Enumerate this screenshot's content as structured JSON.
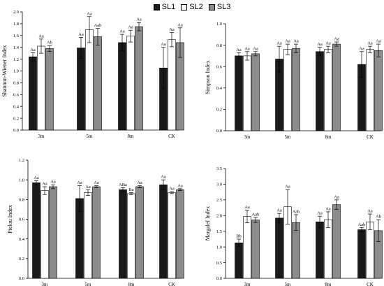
{
  "legend": [
    {
      "name": "SL1",
      "color": "#1a1a1a"
    },
    {
      "name": "SL2",
      "color": "#ffffff"
    },
    {
      "name": "SL3",
      "color": "#8c8c8c"
    }
  ],
  "chart_data": [
    {
      "type": "bar",
      "ylabel": "Shannon-Wiener Index",
      "ylim": [
        0,
        2.0
      ],
      "yticks": [
        "0.0",
        "0.2",
        "0.4",
        "0.6",
        "0.8",
        "1.0",
        "1.2",
        "1.4",
        "1.6",
        "1.8",
        "2.0"
      ],
      "categories": [
        "3m",
        "5m",
        "8m",
        "CK"
      ],
      "series": [
        {
          "name": "SL1",
          "values": [
            1.24,
            1.39,
            1.48,
            1.05
          ],
          "errors": [
            0.07,
            0.18,
            0.14,
            0.35
          ],
          "labels": [
            "Aa",
            "Aa",
            "Aa",
            "Aa"
          ]
        },
        {
          "name": "SL2",
          "values": [
            1.42,
            1.7,
            1.59,
            1.53
          ],
          "errors": [
            0.12,
            0.22,
            0.1,
            0.12
          ],
          "labels": [
            "Aa",
            "Aa",
            "Aa",
            "Aa"
          ]
        },
        {
          "name": "SL3",
          "values": [
            1.38,
            1.58,
            1.75,
            1.48
          ],
          "errors": [
            0.05,
            0.14,
            0.07,
            0.25
          ],
          "labels": [
            "Ab",
            "Aab",
            "Aa",
            "Aa"
          ]
        }
      ]
    },
    {
      "type": "bar",
      "ylabel": "Simpson Index",
      "ylim": [
        0,
        1.0
      ],
      "yticks": [
        "0.0",
        "0.2",
        "0.4",
        "0.6",
        "0.8",
        "1.0"
      ],
      "categories": [
        "3m",
        "5m",
        "8m",
        "CK"
      ],
      "series": [
        {
          "name": "SL1",
          "values": [
            0.7,
            0.67,
            0.74,
            0.62
          ],
          "errors": [
            0.03,
            0.12,
            0.04,
            0.12
          ],
          "labels": [
            "Aa",
            "Aa",
            "Aa",
            "Aa"
          ]
        },
        {
          "name": "SL2",
          "values": [
            0.7,
            0.76,
            0.76,
            0.76
          ],
          "errors": [
            0.04,
            0.05,
            0.03,
            0.03
          ],
          "labels": [
            "Aa",
            "Aa",
            "Aa",
            "Aa"
          ]
        },
        {
          "name": "SL3",
          "values": [
            0.72,
            0.77,
            0.81,
            0.75
          ],
          "errors": [
            0.02,
            0.04,
            0.02,
            0.06
          ],
          "labels": [
            "Aa",
            "Aa",
            "Aa",
            "Aa"
          ]
        }
      ]
    },
    {
      "type": "bar",
      "ylabel": "Pielou Index",
      "ylim": [
        0,
        1.2
      ],
      "yticks": [
        "0.0",
        "0.2",
        "0.4",
        "0.6",
        "0.8",
        "1.0",
        "1.2"
      ],
      "categories": [
        "3m",
        "5m",
        "8m",
        "CK"
      ],
      "series": [
        {
          "name": "SL1",
          "values": [
            0.97,
            0.81,
            0.9,
            0.95
          ],
          "errors": [
            0.02,
            0.13,
            0.02,
            0.05
          ],
          "labels": [
            "Aa",
            "Aa",
            "ABa",
            "Aa"
          ]
        },
        {
          "name": "SL2",
          "values": [
            0.89,
            0.87,
            0.86,
            0.87
          ],
          "errors": [
            0.04,
            0.03,
            0.01,
            0.01
          ],
          "labels": [
            "Aa",
            "Aa",
            "Ba",
            "Aa"
          ]
        },
        {
          "name": "SL3",
          "values": [
            0.93,
            0.93,
            0.93,
            0.9
          ],
          "errors": [
            0.02,
            0.01,
            0.01,
            0.01
          ],
          "labels": [
            "Aa",
            "Aa",
            "Aa",
            "Aa"
          ]
        }
      ]
    },
    {
      "type": "bar",
      "ylabel": "Margalef Index",
      "ylim": [
        0,
        3.5
      ],
      "yticks": [
        "0.0",
        "0.5",
        "1.0",
        "1.5",
        "2.0",
        "2.5",
        "3.0",
        "3.5"
      ],
      "categories": [
        "3m",
        "5m",
        "8m",
        "CK"
      ],
      "series": [
        {
          "name": "SL1",
          "values": [
            1.13,
            1.92,
            1.8,
            1.55
          ],
          "errors": [
            0.12,
            0.15,
            0.18,
            0.07
          ],
          "labels": [
            "Bb",
            "Aa",
            "Aa",
            "Aab"
          ]
        },
        {
          "name": "SL2",
          "values": [
            1.97,
            2.28,
            1.87,
            1.8
          ],
          "errors": [
            0.2,
            0.55,
            0.25,
            0.25
          ],
          "labels": [
            "Aa",
            "Aa",
            "Aa",
            "Aa"
          ]
        },
        {
          "name": "SL3",
          "values": [
            1.86,
            1.78,
            2.35,
            1.52
          ],
          "errors": [
            0.08,
            0.25,
            0.15,
            0.35
          ],
          "labels": [
            "Aab",
            "Aab",
            "Aa",
            "Ab"
          ]
        }
      ]
    }
  ]
}
